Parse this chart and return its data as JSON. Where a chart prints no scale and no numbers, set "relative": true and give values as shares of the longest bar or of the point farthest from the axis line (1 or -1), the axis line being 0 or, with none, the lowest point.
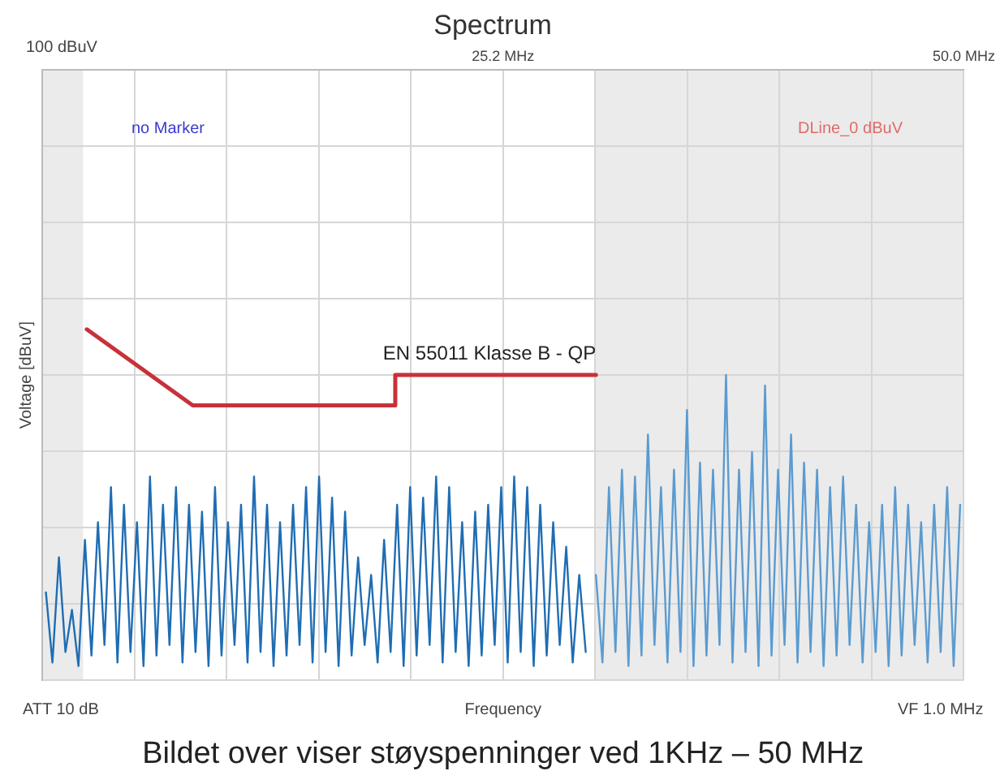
{
  "chart_data": {
    "type": "line",
    "title": "Spectrum",
    "ylabel": "Voltage [dBuV]",
    "xlabel": "Frequency",
    "relative": true,
    "xlim": [
      0.4,
      50
    ],
    "xticks": [
      {
        "value": 0.4,
        "label": null
      },
      {
        "value": 5.36,
        "label": null
      },
      {
        "value": 10.32,
        "label": null
      },
      {
        "value": 15.28,
        "label": null
      },
      {
        "value": 20.24,
        "label": null
      },
      {
        "value": 25.2,
        "label": "25.2 MHz"
      },
      {
        "value": 30.16,
        "label": null
      },
      {
        "value": 35.12,
        "label": null
      },
      {
        "value": 40.08,
        "label": null
      },
      {
        "value": 45.04,
        "label": null
      },
      {
        "value": 50,
        "label": "50.0 MHz"
      }
    ],
    "grid": true,
    "legend": false,
    "marker": "none",
    "bands": [
      {
        "axis": "x",
        "from": 0.4,
        "to": 2.6,
        "color": "#ebebeb"
      },
      {
        "axis": "x",
        "from": 30.16,
        "to": 50,
        "color": "#ebebeb"
      }
    ],
    "annotations": [
      "100 dBuV",
      "no Marker",
      "DLine_0 dBuV",
      "ATT 10 dB",
      "VF 1.0 MHz",
      "Bildet over viser støyspenninger ved 1KHz – 50 MHz"
    ],
    "series": [
      {
        "color": "#1f6db3",
        "x": [
          0.6,
          0.95,
          1.3,
          1.65,
          2,
          2.35,
          2.7,
          3.05,
          3.4,
          3.75,
          4.1,
          4.45,
          4.8,
          5.15,
          5.5,
          5.85,
          6.2,
          6.55,
          6.9,
          7.25,
          7.6,
          7.95,
          8.3,
          8.65,
          9,
          9.35,
          9.7,
          10.05,
          10.4,
          10.75,
          11.1,
          11.45,
          11.8,
          12.15,
          12.5,
          12.85,
          13.2,
          13.55,
          13.9,
          14.25,
          14.6,
          14.95,
          15.3,
          15.65,
          16,
          16.35,
          16.7,
          17.05,
          17.4,
          17.75,
          18.1,
          18.45,
          18.8,
          19.15,
          19.5,
          19.85,
          20.2,
          20.55,
          20.9,
          21.25,
          21.6,
          21.95,
          22.3,
          22.65,
          23,
          23.35,
          23.7,
          24.05,
          24.4,
          24.75,
          25.1,
          25.45,
          25.8,
          26.15,
          26.5,
          26.85,
          27.2,
          27.55,
          27.9,
          28.25,
          28.6,
          28.95,
          29.3,
          29.65
        ],
        "values": [
          0.25,
          0.05,
          0.35,
          0.08,
          0.2,
          0.04,
          0.4,
          0.07,
          0.45,
          0.1,
          0.55,
          0.05,
          0.5,
          0.08,
          0.45,
          0.04,
          0.58,
          0.07,
          0.5,
          0.1,
          0.55,
          0.05,
          0.5,
          0.08,
          0.48,
          0.04,
          0.55,
          0.07,
          0.45,
          0.1,
          0.5,
          0.05,
          0.58,
          0.08,
          0.5,
          0.04,
          0.45,
          0.07,
          0.5,
          0.1,
          0.55,
          0.05,
          0.58,
          0.08,
          0.52,
          0.04,
          0.48,
          0.07,
          0.35,
          0.1,
          0.3,
          0.05,
          0.4,
          0.08,
          0.5,
          0.04,
          0.55,
          0.07,
          0.52,
          0.1,
          0.58,
          0.05,
          0.55,
          0.08,
          0.45,
          0.04,
          0.48,
          0.07,
          0.5,
          0.1,
          0.55,
          0.05,
          0.58,
          0.08,
          0.55,
          0.04,
          0.5,
          0.07,
          0.45,
          0.1,
          0.38,
          0.05,
          0.3,
          0.08
        ]
      },
      {
        "color": "#5b9bd0",
        "x": [
          30.2,
          30.55,
          30.9,
          31.25,
          31.6,
          31.95,
          32.3,
          32.65,
          33,
          33.35,
          33.7,
          34.05,
          34.4,
          34.75,
          35.1,
          35.45,
          35.8,
          36.15,
          36.5,
          36.85,
          37.2,
          37.55,
          37.9,
          38.25,
          38.6,
          38.95,
          39.3,
          39.65,
          40,
          40.35,
          40.7,
          41.05,
          41.4,
          41.75,
          42.1,
          42.45,
          42.8,
          43.15,
          43.5,
          43.85,
          44.2,
          44.55,
          44.9,
          45.25,
          45.6,
          45.95,
          46.3,
          46.65,
          47,
          47.35,
          47.7,
          48.05,
          48.4,
          48.75,
          49.1,
          49.45,
          49.8
        ],
        "values": [
          0.3,
          0.05,
          0.55,
          0.08,
          0.6,
          0.04,
          0.58,
          0.07,
          0.7,
          0.1,
          0.55,
          0.05,
          0.6,
          0.08,
          0.77,
          0.04,
          0.62,
          0.07,
          0.6,
          0.1,
          0.87,
          0.05,
          0.6,
          0.08,
          0.65,
          0.04,
          0.84,
          0.07,
          0.6,
          0.1,
          0.7,
          0.05,
          0.62,
          0.08,
          0.6,
          0.04,
          0.55,
          0.07,
          0.58,
          0.1,
          0.5,
          0.05,
          0.45,
          0.08,
          0.5,
          0.04,
          0.55,
          0.07,
          0.5,
          0.1,
          0.45,
          0.05,
          0.5,
          0.08,
          0.55,
          0.04,
          0.5
        ]
      },
      {
        "name": "EN 55011 Klasse B - QP",
        "color": "#c8313a",
        "x": [
          2.8,
          8.5,
          19.4,
          19.4,
          30.2
        ],
        "values": [
          1,
          0.783,
          0.783,
          0.87,
          0.87
        ]
      }
    ]
  }
}
